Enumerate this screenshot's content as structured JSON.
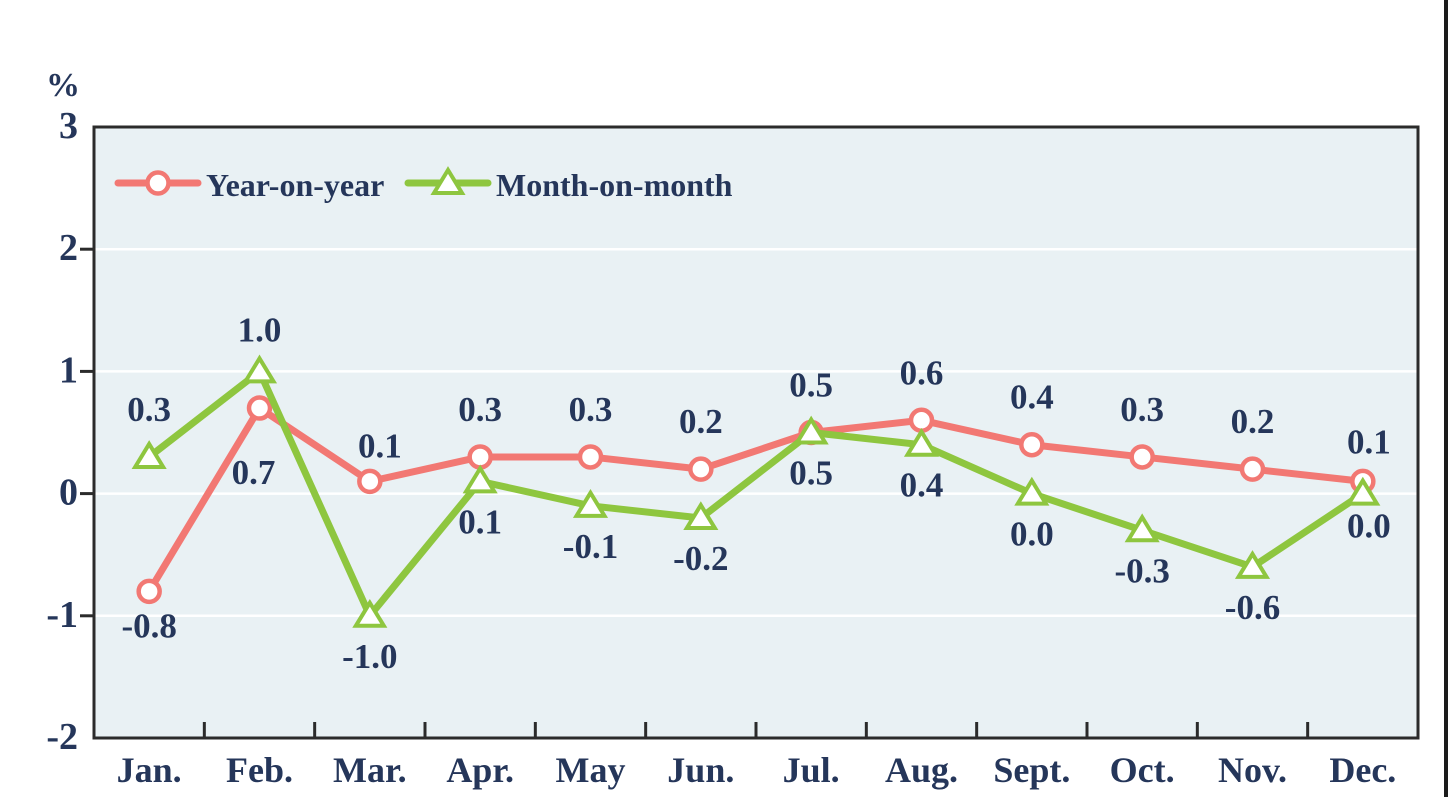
{
  "figure": {
    "unit_label": "%"
  },
  "chart_data": {
    "type": "line",
    "title": "",
    "xlabel": "",
    "ylabel": "%",
    "unit_label": "%",
    "categories": [
      "Jan.",
      "Feb.",
      "Mar.",
      "Apr.",
      "May",
      "Jun.",
      "Jul.",
      "Aug.",
      "Sept.",
      "Oct.",
      "Nov.",
      "Dec."
    ],
    "ylim": [
      -2,
      3
    ],
    "yticks": [
      3,
      2,
      1,
      0,
      -1,
      -2
    ],
    "grid": "horizontal white gridlines on light blue plot area",
    "legend_position": "top-left inside plot area",
    "colors": {
      "year_on_year_line": "#f27873",
      "month_on_month_line": "#8ec63f",
      "text": "#25365a",
      "plot_background": "#e9f1f4",
      "plot_border": "#2b2b2b",
      "gridline": "#ffffff",
      "marker_fill": "#ffffff"
    },
    "series": [
      {
        "name": "Year-on-year",
        "marker": "circle",
        "color": "#f27873",
        "values": [
          -0.8,
          0.7,
          0.1,
          0.3,
          0.3,
          0.2,
          0.5,
          0.6,
          0.4,
          0.3,
          0.2,
          0.1
        ],
        "point_labels": [
          "-0.8",
          "0.7",
          "0.1",
          "0.3",
          "0.3",
          "0.2",
          "0.5",
          "0.6",
          "0.4",
          "0.3",
          "0.2",
          "0.1"
        ],
        "label_side": [
          "below",
          "below",
          "above",
          "above",
          "above",
          "above",
          "above",
          "above",
          "above",
          "above",
          "above",
          "above"
        ]
      },
      {
        "name": "Month-on-month",
        "marker": "triangle",
        "color": "#8ec63f",
        "values": [
          0.3,
          1.0,
          -1.0,
          0.1,
          -0.1,
          -0.2,
          0.5,
          0.4,
          0.0,
          -0.3,
          -0.6,
          0.0
        ],
        "point_labels": [
          "0.3",
          "1.0",
          "-1.0",
          "0.1",
          "-0.1",
          "-0.2",
          "0.5",
          "0.4",
          "0.0",
          "-0.3",
          "-0.6",
          "0.0"
        ],
        "label_side": [
          "above",
          "above",
          "below",
          "below",
          "below",
          "below",
          "below",
          "below",
          "below",
          "below",
          "below",
          "below"
        ]
      }
    ]
  }
}
